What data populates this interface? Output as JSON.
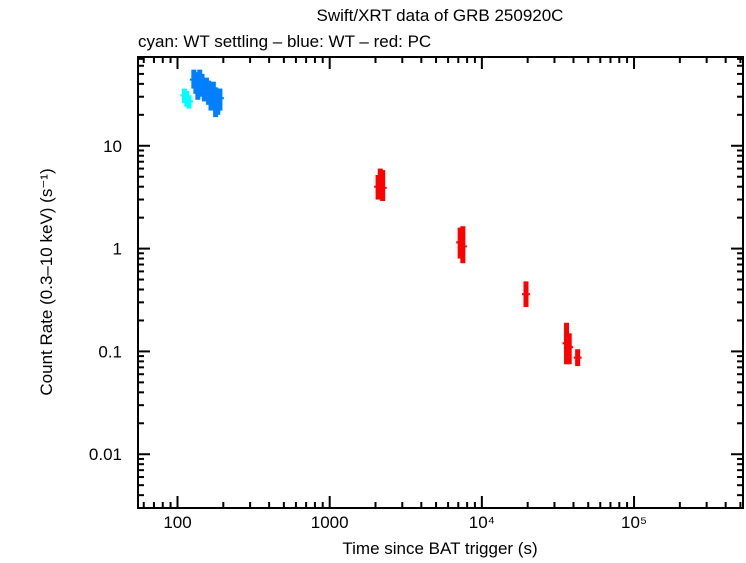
{
  "chart_data": {
    "type": "scatter",
    "title": "Swift/XRT data of GRB 250920C",
    "subtitle": "cyan: WT settling – blue: WT – red: PC",
    "xlabel": "Time since BAT trigger (s)",
    "ylabel": "Count Rate (0.3–10 keV) (s⁻¹)",
    "xscale": "log",
    "yscale": "log",
    "xlim": [
      55,
      520000
    ],
    "ylim": [
      0.003,
      73
    ],
    "grid": false,
    "x_ticks": [
      {
        "value": 100,
        "label": "100"
      },
      {
        "value": 1000,
        "label": "1000"
      },
      {
        "value": 10000,
        "label": "10⁴"
      },
      {
        "value": 100000,
        "label": "10⁵"
      }
    ],
    "y_ticks": [
      {
        "value": 10,
        "label": "10"
      },
      {
        "value": 1,
        "label": "1"
      },
      {
        "value": 0.1,
        "label": "0.1"
      },
      {
        "value": 0.01,
        "label": "0.01"
      }
    ],
    "series": [
      {
        "mode": "WT settling",
        "color": "#00ffff",
        "points": [
          {
            "x": 111,
            "y": 31,
            "lo": 26,
            "hi": 36
          },
          {
            "x": 115,
            "y": 29,
            "lo": 24,
            "hi": 34
          },
          {
            "x": 119,
            "y": 27,
            "lo": 23,
            "hi": 31
          }
        ]
      },
      {
        "mode": "WT",
        "color": "#0080ff",
        "points": [
          {
            "x": 128,
            "y": 44,
            "lo": 36,
            "hi": 55
          },
          {
            "x": 132,
            "y": 40,
            "lo": 32,
            "hi": 52
          },
          {
            "x": 136,
            "y": 36,
            "lo": 28,
            "hi": 50
          },
          {
            "x": 140,
            "y": 42,
            "lo": 33,
            "hi": 55
          },
          {
            "x": 145,
            "y": 38,
            "lo": 30,
            "hi": 50
          },
          {
            "x": 150,
            "y": 34,
            "lo": 27,
            "hi": 44
          },
          {
            "x": 155,
            "y": 38,
            "lo": 30,
            "hi": 46
          },
          {
            "x": 160,
            "y": 33,
            "lo": 25,
            "hi": 43
          },
          {
            "x": 166,
            "y": 30,
            "lo": 22,
            "hi": 40
          },
          {
            "x": 172,
            "y": 32,
            "lo": 24,
            "hi": 42
          },
          {
            "x": 178,
            "y": 28,
            "lo": 19,
            "hi": 37
          },
          {
            "x": 184,
            "y": 27,
            "lo": 20,
            "hi": 36
          },
          {
            "x": 190,
            "y": 29,
            "lo": 22,
            "hi": 36
          }
        ]
      },
      {
        "mode": "PC",
        "color": "#ff0000",
        "points": [
          {
            "x": 2080,
            "y": 4.0,
            "lo": 3.0,
            "hi": 5.2
          },
          {
            "x": 2150,
            "y": 4.3,
            "lo": 3.0,
            "hi": 6.0
          },
          {
            "x": 2230,
            "y": 3.9,
            "lo": 2.9,
            "hi": 5.8
          },
          {
            "x": 7200,
            "y": 1.15,
            "lo": 0.8,
            "hi": 1.6
          },
          {
            "x": 7500,
            "y": 1.05,
            "lo": 0.72,
            "hi": 1.65
          },
          {
            "x": 19500,
            "y": 0.36,
            "lo": 0.27,
            "hi": 0.48
          },
          {
            "x": 36000,
            "y": 0.12,
            "lo": 0.075,
            "hi": 0.19
          },
          {
            "x": 37500,
            "y": 0.11,
            "lo": 0.075,
            "hi": 0.15
          },
          {
            "x": 42600,
            "y": 0.087,
            "lo": 0.072,
            "hi": 0.105
          }
        ]
      }
    ]
  }
}
